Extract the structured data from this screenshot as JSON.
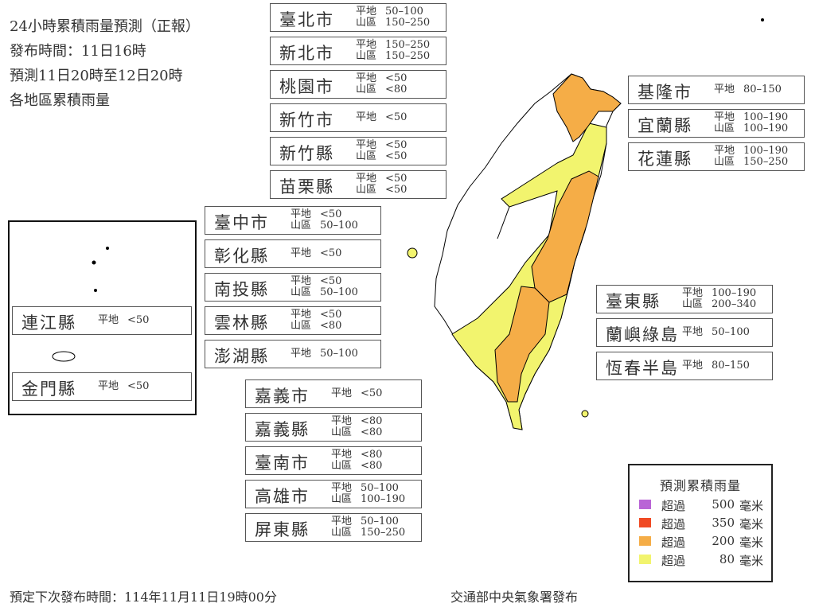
{
  "header": {
    "lines": [
      "24小時累積雨量預測（正報）",
      "發布時間：11日16時",
      "預測11日20時至12日20時",
      "各地區累積雨量"
    ]
  },
  "labels": {
    "plain": "平地",
    "mountain": "山區"
  },
  "regions_north": [
    {
      "name": "臺北市",
      "plain": "50–100",
      "mountain": "150–250"
    },
    {
      "name": "新北市",
      "plain": "150–250",
      "mountain": "150–250"
    },
    {
      "name": "桃園市",
      "plain": "<50",
      "mountain": "<80"
    },
    {
      "name": "新竹市",
      "plain": "<50"
    },
    {
      "name": "新竹縣",
      "plain": "<50",
      "mountain": "<50"
    },
    {
      "name": "苗栗縣",
      "plain": "<50",
      "mountain": "<50"
    }
  ],
  "regions_central": [
    {
      "name": "臺中市",
      "plain": "<50",
      "mountain": "50–100"
    },
    {
      "name": "彰化縣",
      "plain": "<50"
    },
    {
      "name": "南投縣",
      "plain": "<50",
      "mountain": "50–100"
    },
    {
      "name": "雲林縣",
      "plain": "<50",
      "mountain": "<80"
    },
    {
      "name": "澎湖縣",
      "plain": "50–100"
    }
  ],
  "regions_south": [
    {
      "name": "嘉義市",
      "plain": "<50"
    },
    {
      "name": "嘉義縣",
      "plain": "<80",
      "mountain": "<80"
    },
    {
      "name": "臺南市",
      "plain": "<80",
      "mountain": "<80"
    },
    {
      "name": "高雄市",
      "plain": "50–100",
      "mountain": "100–190"
    },
    {
      "name": "屏東縣",
      "plain": "50–100",
      "mountain": "150–250"
    }
  ],
  "regions_ne": [
    {
      "name": "基隆市",
      "plain": "80–150"
    },
    {
      "name": "宜蘭縣",
      "plain": "100–190",
      "mountain": "100–190"
    },
    {
      "name": "花蓮縣",
      "plain": "100–190",
      "mountain": "150–250"
    }
  ],
  "regions_se": [
    {
      "name": "臺東縣",
      "plain": "100–190",
      "mountain": "200–340"
    },
    {
      "name": "蘭嶼綠島",
      "plain": "50–100"
    },
    {
      "name": "恆春半島",
      "plain": "80–150"
    }
  ],
  "regions_islands": [
    {
      "name": "連江縣",
      "plain": "<50"
    },
    {
      "name": "金門縣",
      "plain": "<50"
    }
  ],
  "legend": {
    "title": "預測累積雨量",
    "items": [
      {
        "prefix": "超過",
        "value": "500",
        "unit": "毫米",
        "color": "#b964d6"
      },
      {
        "prefix": "超過",
        "value": "350",
        "unit": "毫米",
        "color": "#f04a24"
      },
      {
        "prefix": "超過",
        "value": "200",
        "unit": "毫米",
        "color": "#f5ad47"
      },
      {
        "prefix": "超過",
        "value": "80",
        "unit": "毫米",
        "color": "#f2f46e"
      }
    ]
  },
  "footer": {
    "next_issue": "預定下次發布時間：114年11月11日19時00分",
    "publisher": "交通部中央氣象署發布"
  },
  "colors": {
    "orange": "#f5ad47",
    "yellow": "#f2f46e",
    "border": "#000000"
  }
}
